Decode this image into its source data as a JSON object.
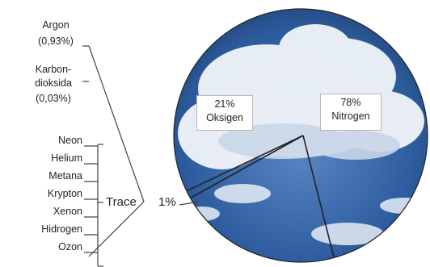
{
  "chart_data": {
    "type": "pie",
    "slices": [
      {
        "label": "Nitrogen",
        "value": 78,
        "value_label": "78%"
      },
      {
        "label": "Oksigen",
        "value": 21,
        "value_label": "21%"
      },
      {
        "label": "Trace",
        "value": 1,
        "value_label": "1%"
      }
    ],
    "trace_breakdown": [
      {
        "name": "Argon",
        "value_label": "(0,93%)"
      },
      {
        "name": "Karbon-",
        "name_cont": "dioksida",
        "value_label": "(0,03%)"
      },
      {
        "name": "Neon"
      },
      {
        "name": "Helium"
      },
      {
        "name": "Metana"
      },
      {
        "name": "Krypton"
      },
      {
        "name": "Xenon"
      },
      {
        "name": "Hidrogen"
      },
      {
        "name": "Ozon"
      }
    ],
    "colors": {
      "sky": "#2d5c9e",
      "cloud": "#e8eef6",
      "line": "#222222"
    }
  }
}
